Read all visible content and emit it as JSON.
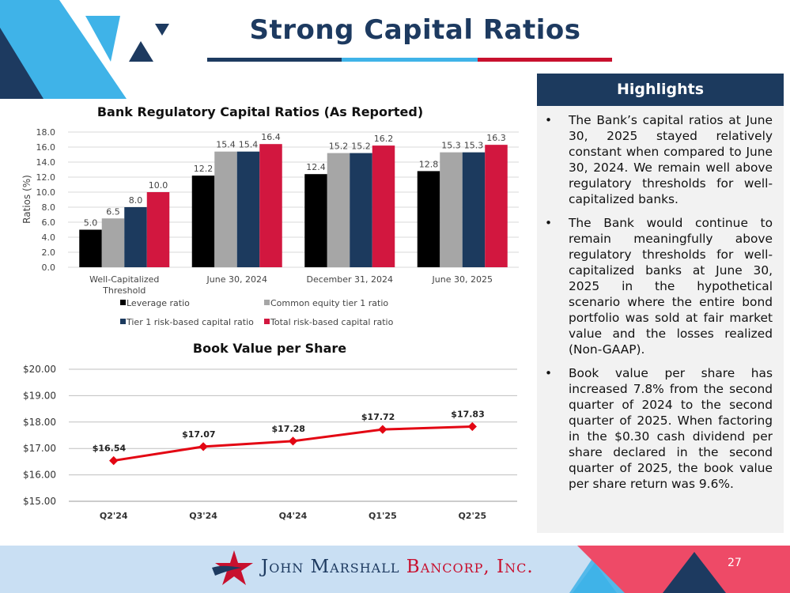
{
  "header": {
    "title": "Strong Capital Ratios",
    "title_bar_colors": [
      "#1d3a60",
      "#3fb3e8",
      "#c8102e"
    ]
  },
  "highlights": {
    "heading": "Highlights",
    "bullet_symbol": "•",
    "items": [
      "The Bank’s capital ratios at June 30, 2025 stayed relatively constant when compared to June 30, 2024. We remain well above regulatory thresholds for well-capitalized banks.",
      "The Bank would continue to remain meaningfully above regulatory thresholds for well-capitalized banks at June 30, 2025 in the hypothetical scenario where the entire bond portfolio was sold at fair market value and the losses realized (Non-GAAP).",
      "Book value per share has increased 7.8% from the second quarter of 2024 to the second quarter of 2025. When factoring in the $0.30 cash dividend per share declared in the second quarter of 2025, the book value per share return was 9.6%."
    ]
  },
  "chart_data": [
    {
      "type": "bar",
      "title": "Bank Regulatory Capital Ratios (As Reported)",
      "xlabel": "",
      "ylabel": "Ratios (%)",
      "ylim": [
        0,
        18
      ],
      "yticks": [
        "0.0",
        "2.0",
        "4.0",
        "6.0",
        "8.0",
        "10.0",
        "12.0",
        "14.0",
        "16.0",
        "18.0"
      ],
      "categories": [
        "Well-Capitalized Threshold",
        "June 30, 2024",
        "December 31, 2024",
        "June 30, 2025"
      ],
      "series": [
        {
          "name": "Leverage ratio",
          "color": "#000000",
          "values": [
            5.0,
            12.2,
            12.4,
            12.8
          ],
          "labels": [
            "5.0",
            "12.2",
            "12.4",
            "12.8"
          ]
        },
        {
          "name": "Common equity tier 1 ratio",
          "color": "#a6a6a6",
          "values": [
            6.5,
            15.4,
            15.2,
            15.3
          ],
          "labels": [
            "6.5",
            "15.4",
            "15.2",
            "15.3"
          ]
        },
        {
          "name": "Tier 1 risk-based capital ratio",
          "color": "#1c3a5e",
          "values": [
            8.0,
            15.4,
            15.2,
            15.3
          ],
          "labels": [
            "8.0",
            "15.4",
            "15.2",
            "15.3"
          ]
        },
        {
          "name": "Total risk-based capital ratio",
          "color": "#d2173f",
          "values": [
            10.0,
            16.4,
            16.2,
            16.3
          ],
          "labels": [
            "10.0",
            "16.4",
            "16.2",
            "16.3"
          ]
        }
      ],
      "grid": true,
      "legend_position": "bottom"
    },
    {
      "type": "line",
      "title": "Book Value per Share",
      "xlabel": "",
      "ylabel": "",
      "ylim": [
        15,
        20
      ],
      "yticks": [
        "$15.00",
        "$16.00",
        "$17.00",
        "$18.00",
        "$19.00",
        "$20.00"
      ],
      "categories": [
        "Q2'24",
        "Q3'24",
        "Q4'24",
        "Q1'25",
        "Q2'25"
      ],
      "series": [
        {
          "color": "#e30613",
          "values": [
            16.54,
            17.07,
            17.28,
            17.72,
            17.83
          ],
          "labels": [
            "$16.54",
            "$17.07",
            "$17.28",
            "$17.72",
            "$17.83"
          ]
        }
      ],
      "grid": true
    }
  ],
  "footer": {
    "company_name_main": "John Marshall",
    "company_name_accent": "Bancorp, Inc.",
    "page_number": "27"
  }
}
